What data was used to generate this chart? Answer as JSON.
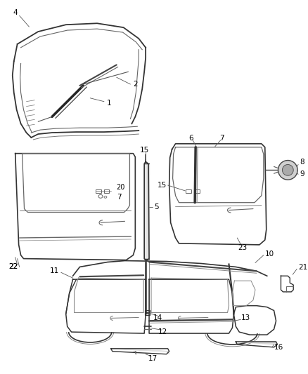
{
  "background_color": "#ffffff",
  "text_color": "#000000",
  "label_fontsize": 7.5,
  "lc": "#555555",
  "lc_dark": "#333333",
  "lc_light": "#888888"
}
